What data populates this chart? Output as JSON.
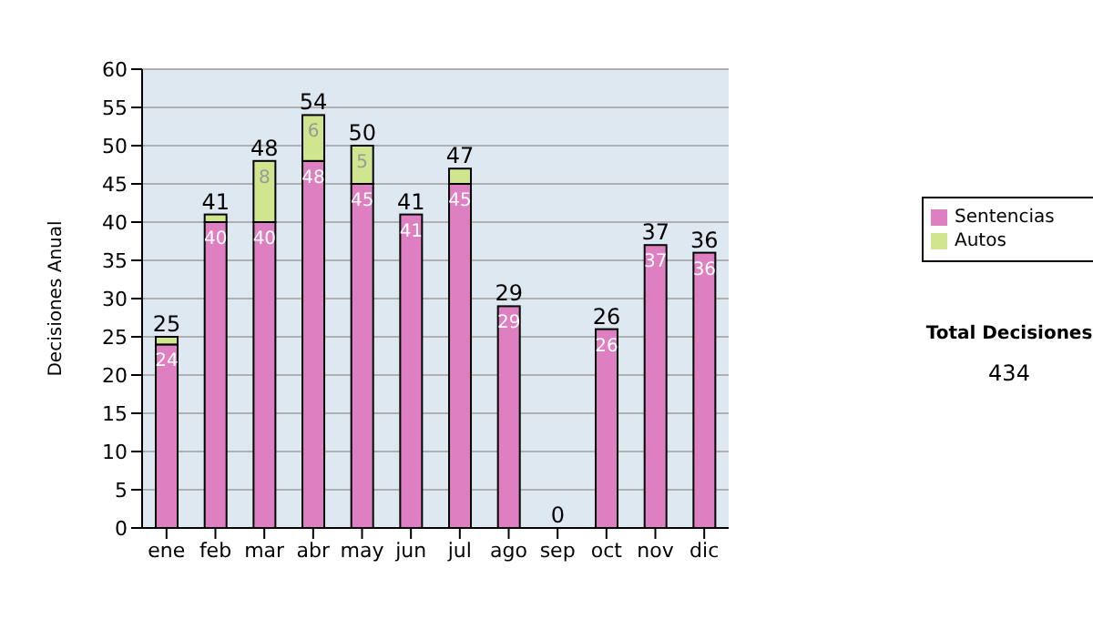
{
  "chart_data": {
    "type": "bar",
    "ylabel": "Decisiones Anual",
    "categories": [
      "ene",
      "feb",
      "mar",
      "abr",
      "may",
      "jun",
      "jul",
      "ago",
      "sep",
      "oct",
      "nov",
      "dic"
    ],
    "series": [
      {
        "name": "Sentencias",
        "color": "#dd7fc0",
        "values": [
          24,
          40,
          40,
          48,
          45,
          41,
          45,
          29,
          0,
          26,
          37,
          36
        ],
        "value_labels": [
          "24",
          "40",
          "40",
          "48",
          "45",
          "41",
          "45",
          "29",
          null,
          "26",
          "37",
          "36"
        ]
      },
      {
        "name": "Autos",
        "color": "#cfe68e",
        "values": [
          1,
          1,
          8,
          6,
          5,
          0,
          2,
          0,
          0,
          0,
          0,
          0
        ],
        "value_labels": [
          null,
          null,
          "8",
          "6",
          "5",
          null,
          null,
          null,
          null,
          null,
          null,
          null
        ]
      }
    ],
    "stacked": true,
    "totals": [
      "25",
      "41",
      "48",
      "54",
      "50",
      "41",
      "47",
      "29",
      "0",
      "26",
      "37",
      "36"
    ],
    "ylim": [
      0,
      60
    ],
    "yticks": [
      0,
      5,
      10,
      15,
      20,
      25,
      30,
      35,
      40,
      45,
      50,
      55,
      60
    ],
    "grid": "y",
    "legend": "right",
    "annotations": [
      "Total Decisiones",
      "434"
    ]
  }
}
